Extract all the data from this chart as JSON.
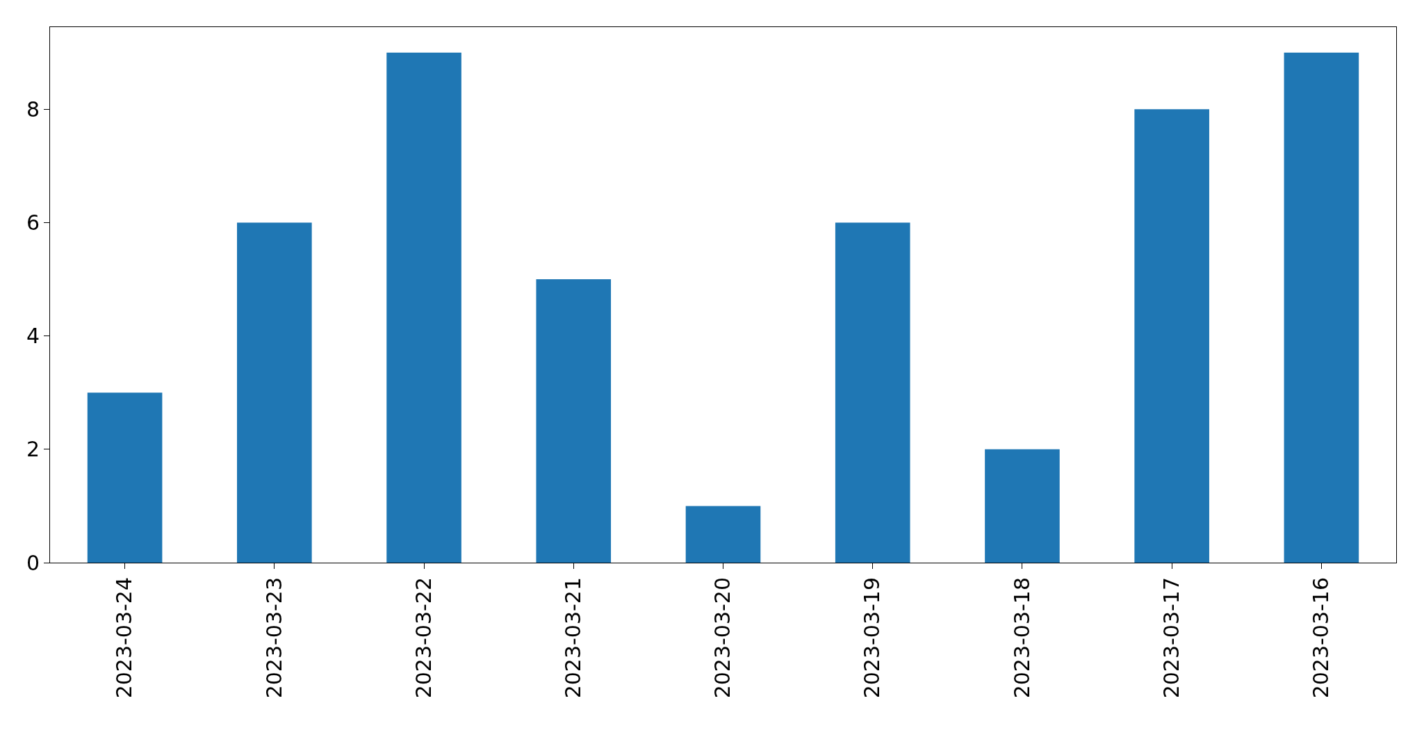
{
  "chart_data": {
    "type": "bar",
    "categories": [
      "2023-03-24",
      "2023-03-23",
      "2023-03-22",
      "2023-03-21",
      "2023-03-20",
      "2023-03-19",
      "2023-03-18",
      "2023-03-17",
      "2023-03-16"
    ],
    "values": [
      3,
      6,
      9,
      5,
      1,
      6,
      2,
      8,
      9
    ],
    "color": "#1f77b4",
    "ylim": [
      0,
      9.45
    ],
    "yticks": [
      0,
      2,
      4,
      6,
      8
    ]
  }
}
